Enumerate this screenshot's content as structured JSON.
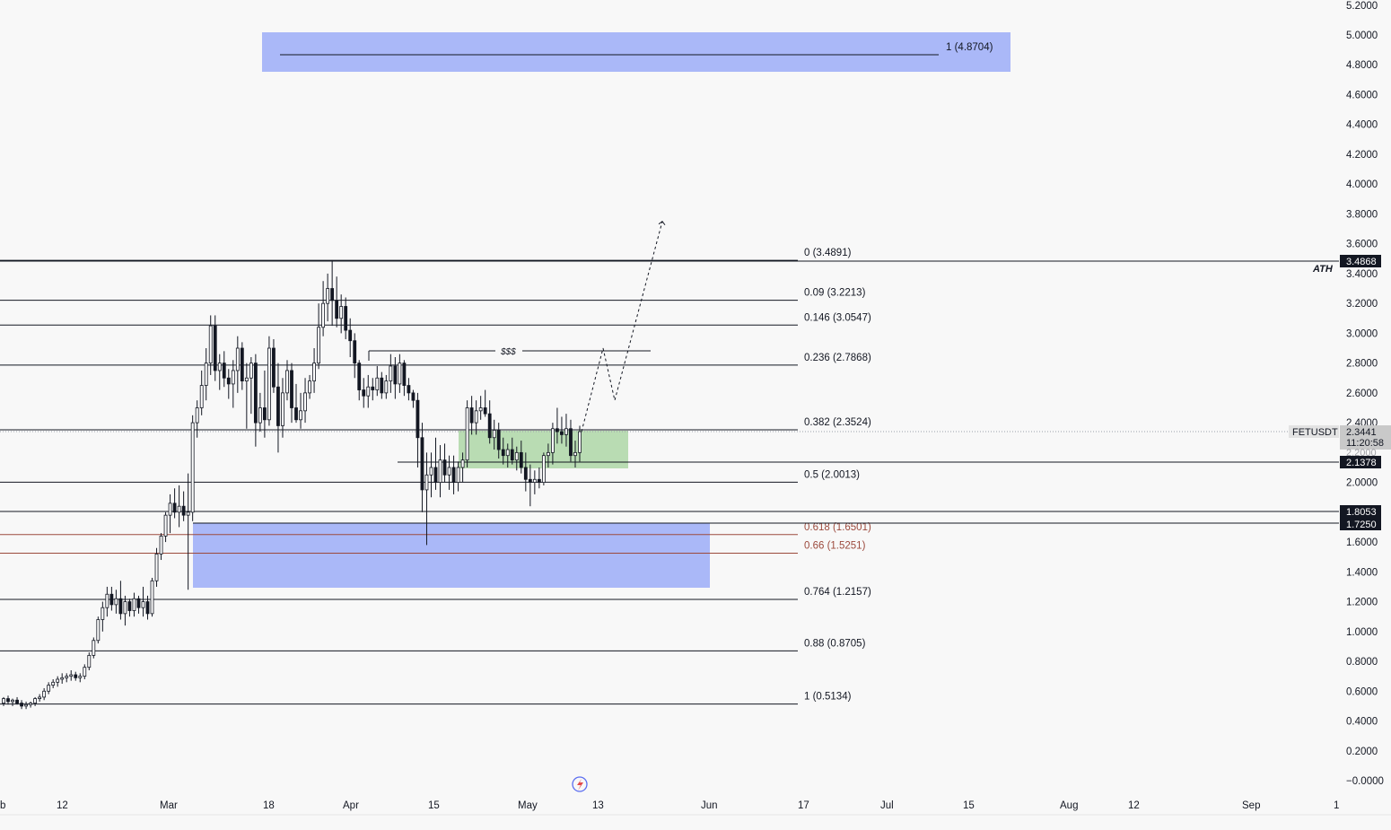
{
  "symbol": "FETUSDT",
  "price_tags": {
    "last_price": "2.3441",
    "countdown": "11:20:58",
    "level_2_1378": "2.1378",
    "level_3_4868": "3.4868",
    "level_1_8053": "1.8053",
    "level_1_7250": "1.7250",
    "hidden_level": "2.2000"
  },
  "annotations": {
    "ath": "ATH",
    "liquidity": "$$$",
    "target_box_label": "1 (4.8704)"
  },
  "fib_levels": [
    {
      "label": "0 (3.4891)",
      "value": 3.4891,
      "color": "#131722"
    },
    {
      "label": "0.09 (3.2213)",
      "value": 3.2213,
      "color": "#131722"
    },
    {
      "label": "0.146 (3.0547)",
      "value": 3.0547,
      "color": "#131722"
    },
    {
      "label": "0.236 (2.7868)",
      "value": 2.7868,
      "color": "#131722"
    },
    {
      "label": "0.382 (2.3524)",
      "value": 2.3524,
      "color": "#131722"
    },
    {
      "label": "0.5 (2.0013)",
      "value": 2.0013,
      "color": "#131722"
    },
    {
      "label": "0.618 (1.6501)",
      "value": 1.6501,
      "color": "#9c4a3d"
    },
    {
      "label": "0.66 (1.5251)",
      "value": 1.5251,
      "color": "#9c4a3d"
    },
    {
      "label": "0.764 (1.2157)",
      "value": 1.2157,
      "color": "#131722"
    },
    {
      "label": "0.88 (0.8705)",
      "value": 0.8705,
      "color": "#131722"
    },
    {
      "label": "1 (0.5134)",
      "value": 0.5134,
      "color": "#131722"
    }
  ],
  "colors": {
    "background": "#f8f8f8",
    "blue_zone": "#aab8f8",
    "green_zone": "#b9dcb3",
    "candle": "#131722",
    "fib_red": "#9c4a3d"
  },
  "chart_data": {
    "type": "candlestick",
    "y_axis_ticks": [
      "5.2000",
      "5.0000",
      "4.8000",
      "4.6000",
      "4.4000",
      "4.2000",
      "4.0000",
      "3.8000",
      "3.6000",
      "3.4000",
      "3.2000",
      "3.0000",
      "2.8000",
      "2.6000",
      "2.4000",
      "2.0000",
      "1.6000",
      "1.4000",
      "1.2000",
      "1.0000",
      "0.8000",
      "0.6000",
      "0.4000",
      "0.2000",
      "−0.0000"
    ],
    "x_axis_ticks": [
      "b",
      "12",
      "Mar",
      "18",
      "Apr",
      "15",
      "May",
      "13",
      "Jun",
      "17",
      "Jul",
      "15",
      "Aug",
      "12",
      "Sep",
      "1"
    ],
    "ylim": [
      0,
      5.2
    ],
    "ohlc": [
      [
        0.52,
        0.56,
        0.5,
        0.55
      ],
      [
        0.55,
        0.57,
        0.51,
        0.53
      ],
      [
        0.53,
        0.55,
        0.5,
        0.54
      ],
      [
        0.54,
        0.56,
        0.51,
        0.52
      ],
      [
        0.52,
        0.54,
        0.48,
        0.5
      ],
      [
        0.5,
        0.53,
        0.48,
        0.51
      ],
      [
        0.51,
        0.53,
        0.49,
        0.52
      ],
      [
        0.52,
        0.56,
        0.5,
        0.55
      ],
      [
        0.55,
        0.58,
        0.53,
        0.56
      ],
      [
        0.56,
        0.62,
        0.54,
        0.6
      ],
      [
        0.6,
        0.66,
        0.58,
        0.64
      ],
      [
        0.64,
        0.68,
        0.62,
        0.66
      ],
      [
        0.66,
        0.7,
        0.63,
        0.68
      ],
      [
        0.68,
        0.72,
        0.65,
        0.69
      ],
      [
        0.69,
        0.72,
        0.66,
        0.7
      ],
      [
        0.7,
        0.74,
        0.67,
        0.71
      ],
      [
        0.71,
        0.73,
        0.67,
        0.69
      ],
      [
        0.69,
        0.72,
        0.66,
        0.7
      ],
      [
        0.7,
        0.78,
        0.68,
        0.76
      ],
      [
        0.76,
        0.86,
        0.74,
        0.84
      ],
      [
        0.84,
        0.96,
        0.82,
        0.94
      ],
      [
        0.94,
        1.1,
        0.92,
        1.08
      ],
      [
        1.08,
        1.2,
        1.0,
        1.16
      ],
      [
        1.16,
        1.3,
        1.1,
        1.25
      ],
      [
        1.25,
        1.3,
        1.14,
        1.18
      ],
      [
        1.18,
        1.28,
        1.12,
        1.22
      ],
      [
        1.22,
        1.34,
        1.08,
        1.12
      ],
      [
        1.12,
        1.24,
        1.04,
        1.2
      ],
      [
        1.2,
        1.22,
        1.1,
        1.14
      ],
      [
        1.14,
        1.26,
        1.1,
        1.22
      ],
      [
        1.22,
        1.24,
        1.12,
        1.16
      ],
      [
        1.16,
        1.3,
        1.1,
        1.2
      ],
      [
        1.2,
        1.24,
        1.08,
        1.12
      ],
      [
        1.12,
        1.36,
        1.1,
        1.34
      ],
      [
        1.34,
        1.56,
        1.3,
        1.52
      ],
      [
        1.52,
        1.66,
        1.48,
        1.64
      ],
      [
        1.64,
        1.8,
        1.6,
        1.78
      ],
      [
        1.78,
        1.92,
        1.66,
        1.86
      ],
      [
        1.86,
        1.96,
        1.76,
        1.8
      ],
      [
        1.8,
        1.98,
        1.7,
        1.84
      ],
      [
        1.84,
        1.94,
        1.74,
        1.78
      ],
      [
        1.78,
        2.06,
        1.28,
        1.8
      ],
      [
        1.8,
        2.45,
        1.74,
        2.4
      ],
      [
        2.4,
        2.55,
        2.3,
        2.5
      ],
      [
        2.5,
        2.75,
        2.45,
        2.65
      ],
      [
        2.65,
        2.9,
        2.55,
        2.8
      ],
      [
        2.8,
        3.12,
        2.72,
        3.05
      ],
      [
        3.05,
        3.12,
        2.68,
        2.75
      ],
      [
        2.75,
        2.86,
        2.62,
        2.8
      ],
      [
        2.8,
        2.88,
        2.64,
        2.7
      ],
      [
        2.7,
        2.76,
        2.56,
        2.66
      ],
      [
        2.66,
        2.82,
        2.5,
        2.75
      ],
      [
        2.75,
        2.98,
        2.6,
        2.9
      ],
      [
        2.9,
        2.94,
        2.62,
        2.68
      ],
      [
        2.68,
        2.8,
        2.36,
        2.7
      ],
      [
        2.7,
        2.84,
        2.46,
        2.8
      ],
      [
        2.8,
        2.86,
        2.24,
        2.4
      ],
      [
        2.4,
        2.6,
        2.34,
        2.5
      ],
      [
        2.5,
        2.75,
        2.3,
        2.42
      ],
      [
        2.42,
        2.98,
        2.38,
        2.9
      ],
      [
        2.9,
        2.96,
        2.6,
        2.64
      ],
      [
        2.64,
        2.8,
        2.2,
        2.38
      ],
      [
        2.38,
        2.7,
        2.3,
        2.6
      ],
      [
        2.6,
        2.82,
        2.55,
        2.75
      ],
      [
        2.75,
        2.8,
        2.4,
        2.5
      ],
      [
        2.5,
        2.66,
        2.4,
        2.42
      ],
      [
        2.42,
        2.6,
        2.36,
        2.48
      ],
      [
        2.48,
        2.7,
        2.4,
        2.6
      ],
      [
        2.6,
        2.72,
        2.56,
        2.68
      ],
      [
        2.68,
        2.9,
        2.6,
        2.8
      ],
      [
        2.8,
        3.2,
        2.76,
        3.04
      ],
      [
        3.04,
        3.35,
        2.98,
        3.2
      ],
      [
        3.2,
        3.4,
        3.08,
        3.3
      ],
      [
        3.3,
        3.49,
        3.05,
        3.22
      ],
      [
        3.22,
        3.38,
        3.04,
        3.1
      ],
      [
        3.1,
        3.26,
        3.0,
        3.18
      ],
      [
        3.18,
        3.24,
        2.96,
        3.02
      ],
      [
        3.02,
        3.1,
        2.84,
        2.95
      ],
      [
        2.95,
        3.0,
        2.7,
        2.8
      ],
      [
        2.8,
        2.82,
        2.55,
        2.62
      ],
      [
        2.62,
        2.7,
        2.5,
        2.58
      ],
      [
        2.58,
        2.72,
        2.5,
        2.64
      ],
      [
        2.64,
        2.7,
        2.55,
        2.62
      ],
      [
        2.62,
        2.78,
        2.58,
        2.7
      ],
      [
        2.7,
        2.74,
        2.56,
        2.6
      ],
      [
        2.6,
        2.72,
        2.56,
        2.68
      ],
      [
        2.68,
        2.86,
        2.6,
        2.78
      ],
      [
        2.78,
        2.84,
        2.56,
        2.66
      ],
      [
        2.66,
        2.86,
        2.6,
        2.8
      ],
      [
        2.8,
        2.82,
        2.58,
        2.65
      ],
      [
        2.65,
        2.7,
        2.55,
        2.6
      ],
      [
        2.6,
        2.62,
        2.5,
        2.55
      ],
      [
        2.55,
        2.6,
        2.1,
        2.3
      ],
      [
        2.3,
        2.4,
        1.8,
        1.95
      ],
      [
        1.95,
        2.2,
        1.58,
        2.05
      ],
      [
        2.05,
        2.2,
        1.9,
        2.1
      ],
      [
        2.1,
        2.3,
        1.95,
        2.0
      ],
      [
        2.0,
        2.25,
        1.9,
        2.15
      ],
      [
        2.15,
        2.26,
        2.0,
        2.05
      ],
      [
        2.05,
        2.18,
        1.95,
        2.1
      ],
      [
        2.1,
        2.18,
        1.92,
        2.0
      ],
      [
        2.0,
        2.14,
        1.94,
        2.1
      ],
      [
        2.1,
        2.2,
        2.0,
        2.15
      ],
      [
        2.15,
        2.55,
        2.1,
        2.5
      ],
      [
        2.5,
        2.58,
        2.32,
        2.4
      ],
      [
        2.4,
        2.55,
        2.32,
        2.48
      ],
      [
        2.48,
        2.58,
        2.42,
        2.5
      ],
      [
        2.5,
        2.62,
        2.44,
        2.46
      ],
      [
        2.46,
        2.55,
        2.26,
        2.3
      ],
      [
        2.3,
        2.42,
        2.22,
        2.35
      ],
      [
        2.35,
        2.4,
        2.16,
        2.22
      ],
      [
        2.22,
        2.3,
        2.12,
        2.18
      ],
      [
        2.18,
        2.26,
        2.1,
        2.22
      ],
      [
        2.22,
        2.3,
        2.12,
        2.15
      ],
      [
        2.15,
        2.24,
        2.08,
        2.2
      ],
      [
        2.2,
        2.28,
        2.06,
        2.1
      ],
      [
        2.1,
        2.2,
        1.94,
        2.02
      ],
      [
        2.02,
        2.12,
        1.84,
        2.0
      ],
      [
        2.0,
        2.08,
        1.92,
        2.02
      ],
      [
        2.02,
        2.1,
        1.96,
        2.0
      ],
      [
        2.0,
        2.2,
        1.98,
        2.18
      ],
      [
        2.18,
        2.26,
        2.1,
        2.2
      ],
      [
        2.2,
        2.4,
        2.12,
        2.36
      ],
      [
        2.36,
        2.5,
        2.26,
        2.34
      ],
      [
        2.34,
        2.44,
        2.26,
        2.32
      ],
      [
        2.32,
        2.46,
        2.24,
        2.36
      ],
      [
        2.36,
        2.42,
        2.14,
        2.18
      ],
      [
        2.18,
        2.28,
        2.1,
        2.2
      ],
      [
        2.2,
        2.38,
        2.14,
        2.34
      ]
    ],
    "projection": [
      {
        "date_index": 0,
        "price": 2.34
      },
      {
        "date_index": 1,
        "price": 2.9
      },
      {
        "date_index": 2,
        "price": 2.55
      },
      {
        "date_index": 3,
        "price": 3.75
      }
    ]
  }
}
